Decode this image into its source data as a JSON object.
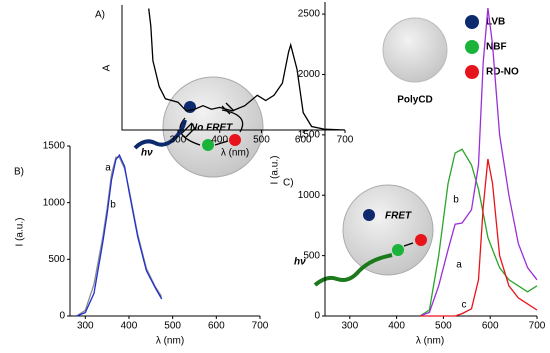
{
  "chart_data": [
    {
      "type": "line",
      "panel_label": "A)",
      "xlabel": "λ (nm)",
      "ylabel": "A",
      "x": [
        230,
        235,
        240,
        255,
        270,
        300,
        320,
        340,
        360,
        380,
        400,
        430,
        460,
        490,
        510,
        530,
        550,
        565,
        570,
        585,
        600,
        620,
        650,
        700
      ],
      "series": [
        {
          "color": "#000000",
          "values": [
            0.7,
            0.6,
            0.4,
            0.25,
            0.18,
            0.16,
            0.11,
            0.12,
            0.14,
            0.12,
            0.13,
            0.11,
            0.14,
            0.2,
            0.17,
            0.2,
            0.27,
            0.45,
            0.49,
            0.35,
            0.1,
            0.02,
            0.005,
            0
          ]
        }
      ],
      "xlim": [
        166,
        700
      ],
      "xticks": [
        300,
        400,
        500,
        600,
        700
      ],
      "ylim": [
        0,
        0.72
      ],
      "key": {
        "title": "PolyCD",
        "items": [
          {
            "name": "LVB",
            "color": "#0d2a6e"
          },
          {
            "name": "NBF",
            "color": "#1bb33a"
          },
          {
            "name": "RD-NO",
            "color": "#e8141b"
          }
        ]
      }
    },
    {
      "type": "line",
      "panel_label": "B)",
      "xlabel": "λ (nm)",
      "ylabel": "I (a.u.)",
      "x": [
        280,
        300,
        320,
        340,
        350,
        360,
        370,
        378,
        390,
        400,
        420,
        440,
        460,
        475
      ],
      "series": [
        {
          "name": "a",
          "color": "#8a8a8a",
          "values": [
            0,
            50,
            280,
            700,
            950,
            1250,
            1400,
            1400,
            1300,
            1120,
            720,
            420,
            260,
            170
          ]
        },
        {
          "name": "b",
          "color": "#1f2fd0",
          "values": [
            0,
            30,
            200,
            650,
            900,
            1200,
            1380,
            1420,
            1320,
            1100,
            700,
            400,
            250,
            150
          ]
        }
      ],
      "xlim": [
        265,
        700
      ],
      "xticks": [
        300,
        400,
        500,
        600,
        700
      ],
      "ylim": [
        0,
        1500
      ],
      "yticks": [
        0,
        500,
        1000,
        1500
      ],
      "annotations": [
        "hν",
        "No FRET"
      ]
    },
    {
      "type": "line",
      "panel_label": "C)",
      "xlabel": "λ (nm)",
      "ylabel": "I (a.u.)",
      "x": [
        450,
        470,
        490,
        510,
        525,
        540,
        560,
        575,
        585,
        595,
        605,
        620,
        640,
        660,
        680,
        700
      ],
      "series": [
        {
          "name": "b",
          "color": "#2aa52a",
          "values": [
            0,
            50,
            500,
            1100,
            1350,
            1380,
            1250,
            1050,
            850,
            650,
            550,
            400,
            300,
            250,
            200,
            250
          ]
        },
        {
          "name": "a",
          "color": "#9b2fd6",
          "values": [
            0,
            30,
            250,
            550,
            760,
            770,
            880,
            1250,
            2100,
            2550,
            2250,
            1500,
            1000,
            600,
            400,
            300
          ]
        },
        {
          "name": "c",
          "color": "#e8141b",
          "values": [
            0,
            0,
            0,
            0,
            0,
            20,
            60,
            300,
            900,
            1300,
            1100,
            500,
            250,
            150,
            100,
            50
          ]
        }
      ],
      "xlim": [
        247,
        700
      ],
      "xticks": [
        300,
        400,
        500,
        600,
        700
      ],
      "ylim": [
        0,
        2600
      ],
      "yticks": [
        0,
        500,
        1000,
        1500,
        2000,
        2500
      ],
      "annotations": [
        "hν",
        "FRET"
      ]
    }
  ]
}
